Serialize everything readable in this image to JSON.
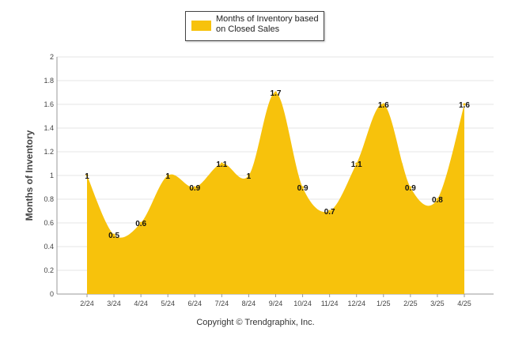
{
  "chart_data": {
    "type": "area",
    "categories": [
      "2/24",
      "3/24",
      "4/24",
      "5/24",
      "6/24",
      "7/24",
      "8/24",
      "9/24",
      "10/24",
      "11/24",
      "12/24",
      "1/25",
      "2/25",
      "3/25",
      "4/25"
    ],
    "series": [
      {
        "name": "Months of Inventory based on Closed Sales",
        "values": [
          1,
          0.5,
          0.6,
          1,
          0.9,
          1.1,
          1,
          1.7,
          0.9,
          0.7,
          1.1,
          1.6,
          0.9,
          0.8,
          1.6
        ]
      }
    ],
    "data_labels": [
      "1",
      "0.5",
      "0.6",
      "1",
      "0.9",
      "1.1",
      "1",
      "1.7",
      "0.9",
      "0.7",
      "1.1",
      "1.6",
      "0.9",
      "0.8",
      "1.6"
    ],
    "ylabel": "Months of Inventory",
    "xlabel": "",
    "ylim": [
      0,
      2
    ],
    "yticks": [
      "0",
      "0.2",
      "0.4",
      "0.6",
      "0.8",
      "1",
      "1.2",
      "1.4",
      "1.6",
      "1.8",
      "2"
    ],
    "grid": true,
    "legend_position": "top-center",
    "colors": {
      "fill": "#f7c20c",
      "grid": "#e6e6e6",
      "axis": "#999999"
    }
  },
  "legend": {
    "label": "Months of Inventory based on Closed Sales"
  },
  "footer": {
    "copyright": "Copyright © Trendgraphix, Inc."
  }
}
